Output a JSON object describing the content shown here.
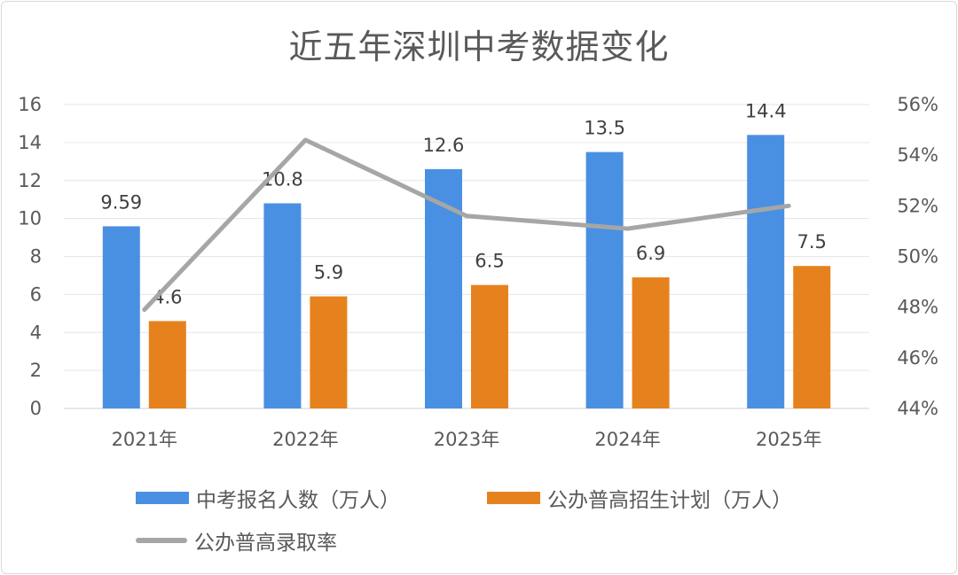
{
  "chart_data": {
    "type": "bar+line",
    "title": "近五年深圳中考数据变化",
    "categories": [
      "2021年",
      "2022年",
      "2023年",
      "2024年",
      "2025年"
    ],
    "series": [
      {
        "name": "中考报名人数（万人）",
        "type": "bar",
        "axis": "left",
        "color": "#4a90e2",
        "values": [
          9.59,
          10.8,
          12.6,
          13.5,
          14.4
        ],
        "labels": [
          "9.59",
          "10.8",
          "12.6",
          "13.5",
          "14.4"
        ]
      },
      {
        "name": "公办普高招生计划（万人）",
        "type": "bar",
        "axis": "left",
        "color": "#e6821e",
        "values": [
          4.6,
          5.9,
          6.5,
          6.9,
          7.5
        ],
        "labels": [
          "4.6",
          "5.9",
          "6.5",
          "6.9",
          "7.5"
        ]
      },
      {
        "name": "公办普高录取率",
        "type": "line",
        "axis": "right",
        "color": "#a6a6a6",
        "values": [
          47.9,
          54.6,
          51.6,
          51.1,
          52.0
        ]
      }
    ],
    "y_left": {
      "min": 0,
      "max": 16,
      "step": 2,
      "ticks": [
        "0",
        "2",
        "4",
        "6",
        "8",
        "10",
        "12",
        "14",
        "16"
      ]
    },
    "y_right": {
      "min": 44,
      "max": 56,
      "step": 2,
      "ticks": [
        "44%",
        "46%",
        "48%",
        "50%",
        "52%",
        "54%",
        "56%"
      ]
    },
    "legend_position": "bottom",
    "grid": true
  }
}
